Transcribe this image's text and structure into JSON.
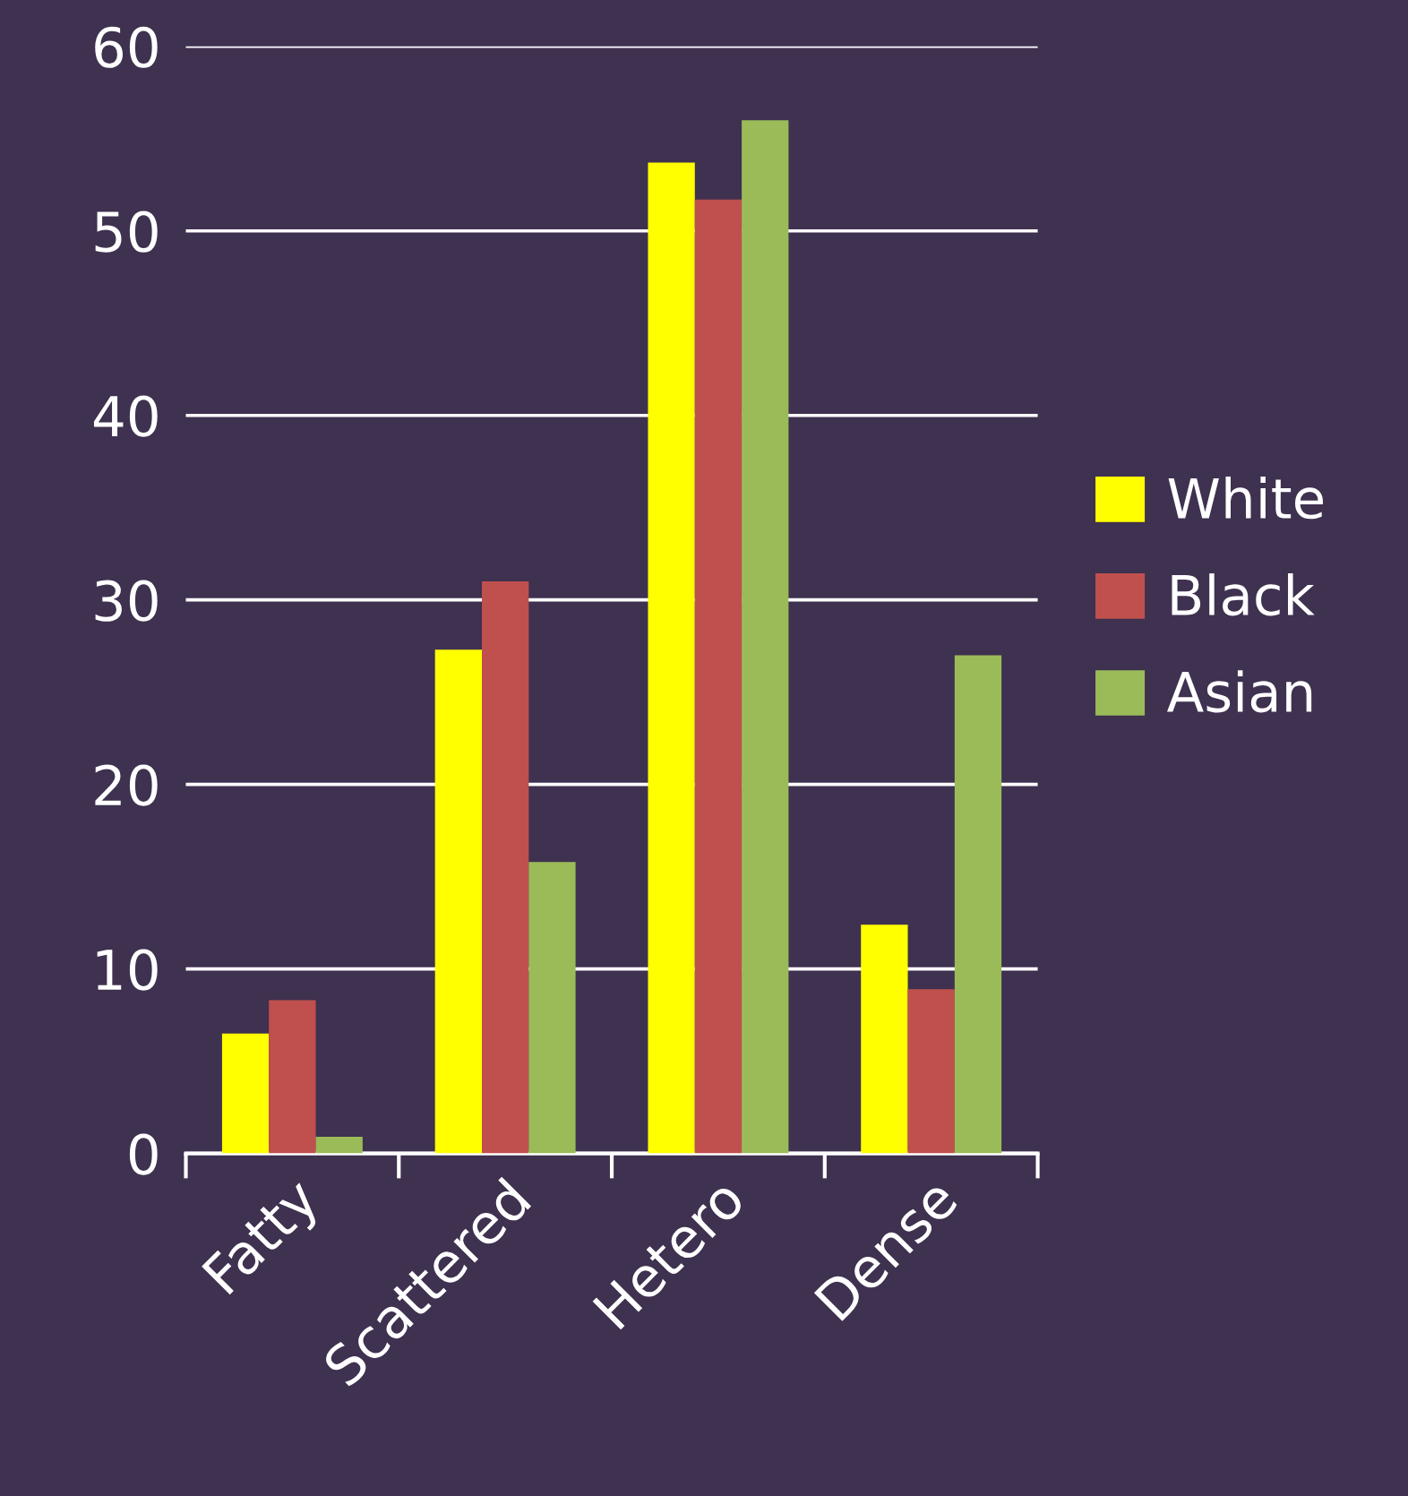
{
  "chart_data": {
    "type": "bar",
    "categories": [
      "Fatty",
      "Scattered",
      "Hetero",
      "Dense"
    ],
    "series": [
      {
        "name": "White",
        "color": "#ffff00",
        "values": [
          6.5,
          27.3,
          53.7,
          12.4
        ]
      },
      {
        "name": "Black",
        "color": "#c0504d",
        "values": [
          8.3,
          31.0,
          51.7,
          8.9
        ]
      },
      {
        "name": "Asian",
        "color": "#9bbb59",
        "values": [
          0.9,
          15.8,
          56.0,
          27.0
        ]
      }
    ],
    "ylim": [
      0,
      60
    ],
    "yticks": [
      0,
      10,
      20,
      30,
      40,
      50,
      60
    ],
    "grid": "y",
    "legend": "right"
  }
}
